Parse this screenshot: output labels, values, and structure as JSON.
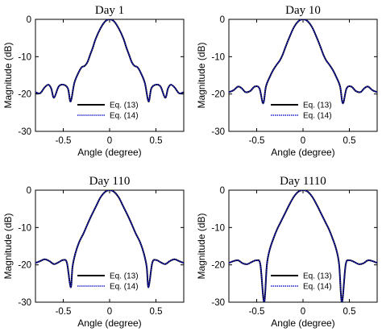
{
  "chart_data": [
    {
      "type": "line",
      "title": "Day 1",
      "xlabel": "Angle (degree)",
      "ylabel": "Magnitude (dB)",
      "xlim": [
        -0.8,
        0.8
      ],
      "ylim": [
        -30,
        0
      ],
      "xticks": [
        "-0.5",
        "0",
        "0.5"
      ],
      "yticks": [
        "0",
        "-10",
        "-20",
        "-30"
      ],
      "grid": false,
      "legend_position": "bottom-center",
      "series": [
        {
          "name": "Eq. (13)",
          "color": "#000000",
          "style": "solid"
        },
        {
          "name": "Eq. (14)",
          "color": "#1f1fd0",
          "style": "dotted"
        }
      ],
      "x": [
        -0.8,
        -0.75,
        -0.7,
        -0.66,
        -0.63,
        -0.6,
        -0.55,
        -0.5,
        -0.45,
        -0.42,
        -0.38,
        -0.33,
        -0.3,
        -0.27,
        -0.24,
        -0.21,
        -0.18,
        -0.15,
        -0.1,
        -0.05,
        0.0,
        0.05,
        0.1,
        0.15,
        0.18,
        0.21,
        0.24,
        0.27,
        0.3,
        0.33,
        0.38,
        0.42,
        0.45,
        0.5,
        0.55,
        0.6,
        0.63,
        0.66,
        0.7,
        0.75,
        0.8
      ],
      "y": [
        -19.5,
        -19.8,
        -18.2,
        -17.5,
        -18.5,
        -21.0,
        -18.0,
        -17.5,
        -18.5,
        -22.0,
        -17.0,
        -14.0,
        -12.8,
        -12.5,
        -11.5,
        -9.5,
        -7.5,
        -5.2,
        -2.5,
        -0.6,
        0.0,
        -0.6,
        -2.5,
        -5.2,
        -7.5,
        -9.5,
        -11.5,
        -12.5,
        -12.8,
        -14.0,
        -17.0,
        -22.0,
        -18.5,
        -17.5,
        -18.0,
        -21.0,
        -18.5,
        -17.5,
        -18.2,
        -19.8,
        -19.5
      ]
    },
    {
      "type": "line",
      "title": "Day 10",
      "xlabel": "Angle (degree)",
      "ylabel": "Magnitude (dB)",
      "xlim": [
        -0.8,
        0.8
      ],
      "ylim": [
        -30,
        0
      ],
      "xticks": [
        "-0.5",
        "0",
        "0.5"
      ],
      "yticks": [
        "0",
        "-10",
        "-20",
        "-30"
      ],
      "grid": false,
      "legend_position": "bottom-center",
      "series": [
        {
          "name": "Eq. (13)",
          "color": "#000000",
          "style": "solid"
        },
        {
          "name": "Eq. (14)",
          "color": "#1f1fd0",
          "style": "dotted"
        }
      ],
      "x": [
        -0.8,
        -0.75,
        -0.7,
        -0.66,
        -0.62,
        -0.57,
        -0.52,
        -0.47,
        -0.43,
        -0.4,
        -0.36,
        -0.32,
        -0.28,
        -0.25,
        -0.22,
        -0.19,
        -0.15,
        -0.1,
        -0.05,
        0.0,
        0.05,
        0.1,
        0.15,
        0.19,
        0.22,
        0.25,
        0.28,
        0.32,
        0.36,
        0.4,
        0.43,
        0.47,
        0.52,
        0.57,
        0.62,
        0.66,
        0.7,
        0.75,
        0.8
      ],
      "y": [
        -19.5,
        -19.0,
        -18.0,
        -18.5,
        -19.5,
        -19.2,
        -18.0,
        -18.5,
        -22.5,
        -18.0,
        -15.5,
        -13.5,
        -12.0,
        -11.0,
        -9.5,
        -7.5,
        -5.0,
        -2.2,
        -0.5,
        0.0,
        -0.5,
        -2.2,
        -5.0,
        -7.5,
        -9.5,
        -11.0,
        -12.0,
        -13.5,
        -15.5,
        -18.0,
        -22.5,
        -18.5,
        -18.0,
        -19.2,
        -19.5,
        -18.5,
        -18.0,
        -19.0,
        -19.5
      ]
    },
    {
      "type": "line",
      "title": "Day 110",
      "xlabel": "Angle (degree)",
      "ylabel": "Magnitude (dB)",
      "xlim": [
        -0.8,
        0.8
      ],
      "ylim": [
        -30,
        0
      ],
      "xticks": [
        "-0.5",
        "0",
        "0.5"
      ],
      "yticks": [
        "0",
        "-10",
        "-20",
        "-30"
      ],
      "grid": false,
      "legend_position": "bottom-center",
      "series": [
        {
          "name": "Eq. (13)",
          "color": "#000000",
          "style": "solid"
        },
        {
          "name": "Eq. (14)",
          "color": "#1f1fd0",
          "style": "dotted"
        }
      ],
      "x": [
        -0.8,
        -0.75,
        -0.7,
        -0.65,
        -0.6,
        -0.55,
        -0.5,
        -0.46,
        -0.42,
        -0.4,
        -0.37,
        -0.33,
        -0.28,
        -0.24,
        -0.2,
        -0.15,
        -0.1,
        -0.05,
        0.0,
        0.05,
        0.1,
        0.15,
        0.2,
        0.24,
        0.28,
        0.33,
        0.37,
        0.4,
        0.42,
        0.46,
        0.5,
        0.55,
        0.6,
        0.65,
        0.7,
        0.75,
        0.8
      ],
      "y": [
        -19.5,
        -19.0,
        -18.5,
        -19.0,
        -19.8,
        -19.3,
        -18.7,
        -19.5,
        -26.0,
        -20.5,
        -17.0,
        -14.0,
        -11.5,
        -9.2,
        -7.0,
        -4.5,
        -2.0,
        -0.5,
        0.0,
        -0.5,
        -2.0,
        -4.5,
        -7.0,
        -9.2,
        -11.5,
        -14.0,
        -17.0,
        -20.5,
        -26.0,
        -19.5,
        -18.7,
        -19.3,
        -19.8,
        -19.0,
        -18.5,
        -19.0,
        -19.5
      ]
    },
    {
      "type": "line",
      "title": "Day 1110",
      "xlabel": "Angle (degree)",
      "ylabel": "Magnitude (dB)",
      "xlim": [
        -0.8,
        0.8
      ],
      "ylim": [
        -30,
        0
      ],
      "xticks": [
        "-0.5",
        "0",
        "0.5"
      ],
      "yticks": [
        "0",
        "-10",
        "-20",
        "-30"
      ],
      "grid": false,
      "legend_position": "bottom-center",
      "series": [
        {
          "name": "Eq. (13)",
          "color": "#000000",
          "style": "solid"
        },
        {
          "name": "Eq. (14)",
          "color": "#1f1fd0",
          "style": "dotted"
        }
      ],
      "x": [
        -0.8,
        -0.75,
        -0.7,
        -0.65,
        -0.6,
        -0.55,
        -0.5,
        -0.46,
        -0.42,
        -0.39,
        -0.36,
        -0.32,
        -0.28,
        -0.24,
        -0.2,
        -0.15,
        -0.1,
        -0.05,
        0.0,
        0.05,
        0.1,
        0.15,
        0.2,
        0.24,
        0.28,
        0.32,
        0.36,
        0.39,
        0.42,
        0.46,
        0.5,
        0.55,
        0.6,
        0.65,
        0.7,
        0.75,
        0.8
      ],
      "y": [
        -19.5,
        -19.0,
        -18.8,
        -19.6,
        -19.8,
        -19.2,
        -18.8,
        -20.0,
        -30.0,
        -20.0,
        -16.0,
        -13.0,
        -10.5,
        -8.5,
        -6.5,
        -4.0,
        -1.8,
        -0.4,
        0.0,
        -0.4,
        -1.8,
        -4.0,
        -6.5,
        -8.5,
        -10.5,
        -13.0,
        -16.0,
        -20.0,
        -30.0,
        -20.0,
        -18.8,
        -19.2,
        -19.8,
        -19.6,
        -18.8,
        -19.0,
        -19.5
      ]
    }
  ]
}
